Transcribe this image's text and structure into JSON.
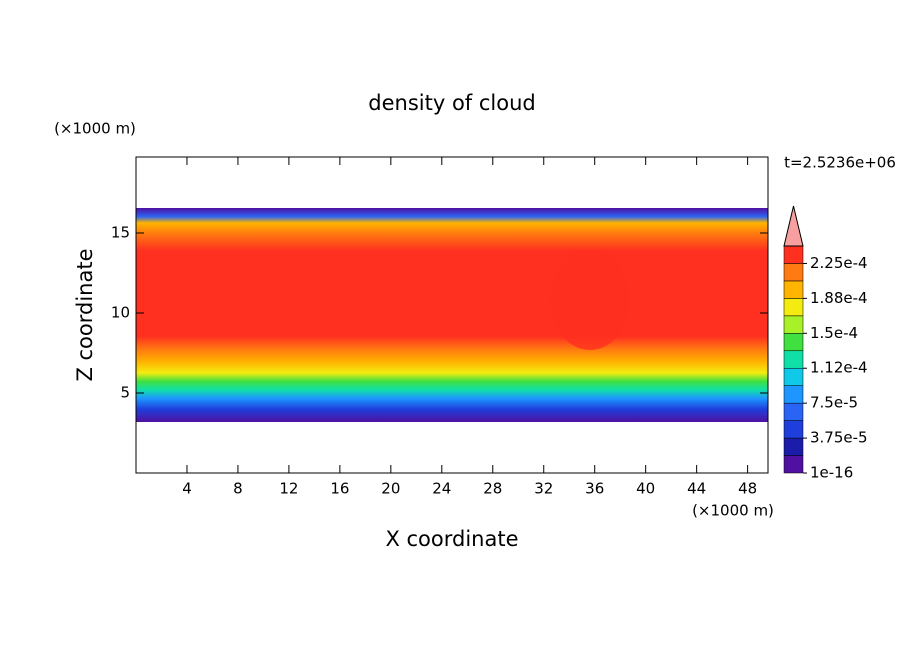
{
  "chart_data": {
    "type": "contour",
    "title": "density of cloud",
    "x_label": "X coordinate",
    "y_label": "Z coordinate",
    "x_unit": "(×1000 m)",
    "y_unit": "(×1000 m)",
    "time_label": "t=2.5236e+06",
    "xlim": [
      0,
      49.6
    ],
    "ylim": [
      0,
      19.75
    ],
    "xticks": [
      4,
      8,
      12,
      16,
      20,
      24,
      28,
      32,
      36,
      40,
      44,
      48
    ],
    "yticks": [
      5,
      10,
      15
    ],
    "levels": [
      1e-16,
      1.875e-05,
      3.75e-05,
      5.625e-05,
      7.5e-05,
      9.375e-05,
      0.0001125,
      0.00013125,
      0.00015,
      0.00016875,
      0.0001875,
      0.00020625,
      0.000225,
      0.00024375
    ],
    "colors": [
      "#5010a0",
      "#1c1caa",
      "#1f3fdc",
      "#2a64f5",
      "#1e96ff",
      "#10c8e8",
      "#10e0a8",
      "#40e040",
      "#a8f028",
      "#f4ec10",
      "#ffb400",
      "#ff7a10",
      "#ff3020"
    ],
    "extend_color": "#f8a0a0",
    "colorbar_ticks": [
      {
        "value": 1e-16,
        "label": "1e-16"
      },
      {
        "value": 3.75e-05,
        "label": "3.75e-5"
      },
      {
        "value": 7.5e-05,
        "label": "7.5e-5"
      },
      {
        "value": 0.0001125,
        "label": "1.12e-4"
      },
      {
        "value": 0.00015,
        "label": "1.5e-4"
      },
      {
        "value": 0.0001875,
        "label": "1.88e-4"
      },
      {
        "value": 0.000225,
        "label": "2.25e-4"
      }
    ]
  }
}
